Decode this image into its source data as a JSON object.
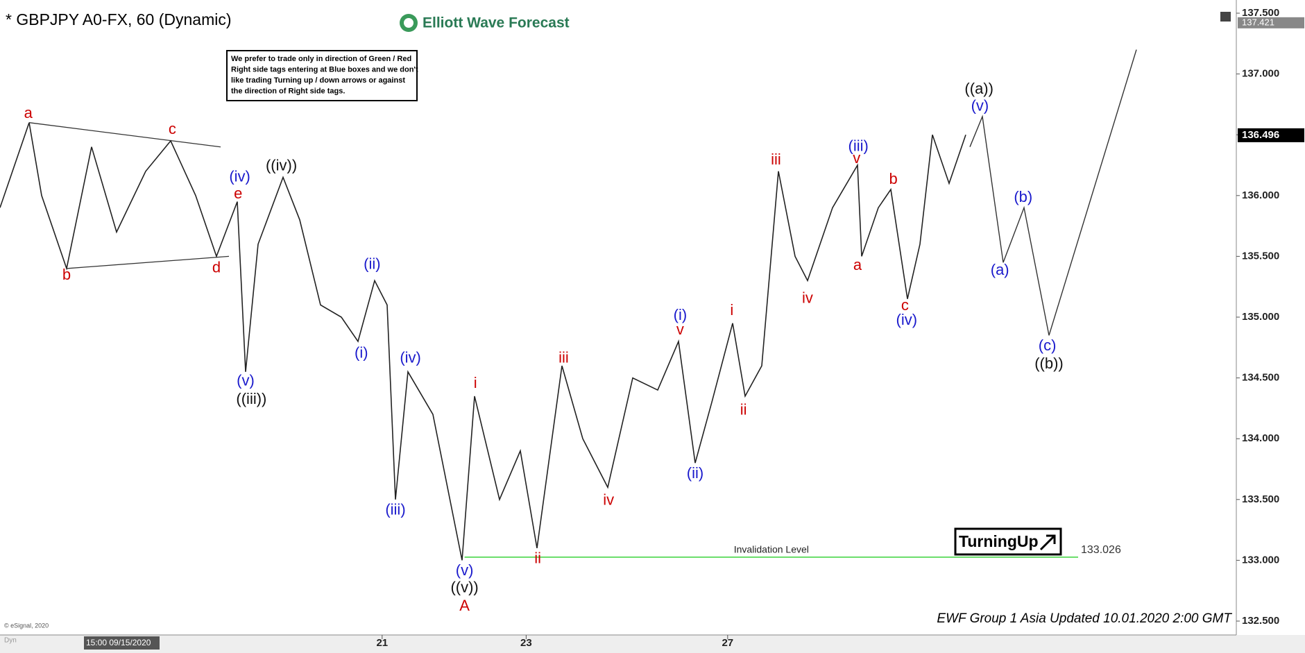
{
  "chart_data": {
    "type": "line",
    "title": "* GBPJPY A0-FX, 60 (Dynamic)",
    "brand": "Elliott Wave Forecast",
    "note": [
      "We prefer to trade only in direction of Green / Red",
      "Right side tags entering at Blue boxes and we don't",
      "like trading Turning up / down arrows or against",
      "the direction of Right side tags."
    ],
    "signal": "TurningUp",
    "footer": "EWF Group 1 Asia Updated 10.01.2020 2:00 GMT",
    "copyright": "© eSignal, 2020",
    "corner_label": "Dyn",
    "cursor_label": "15:00 09/15/2020",
    "last_price": {
      "value": 136.496,
      "label": "136.496"
    },
    "top_price": {
      "value": 137.421,
      "label": "137.421"
    },
    "xlim": [
      0,
      297
    ],
    "ylim": [
      132.5,
      137.5
    ],
    "xticks": [
      {
        "value": 91.8,
        "label": "21"
      },
      {
        "value": 126.4,
        "label": "23"
      },
      {
        "value": 174.8,
        "label": "27"
      }
    ],
    "yticks": [
      {
        "value": 132.5,
        "label": "132.500"
      },
      {
        "value": 133,
        "label": "133.000"
      },
      {
        "value": 133.5,
        "label": "133.500"
      },
      {
        "value": 134,
        "label": "134.000"
      },
      {
        "value": 134.5,
        "label": "134.500"
      },
      {
        "value": 135,
        "label": "135.000"
      },
      {
        "value": 135.5,
        "label": "135.500"
      },
      {
        "value": 136,
        "label": "136.000"
      },
      {
        "value": 136.5,
        "label": "136.500"
      },
      {
        "value": 137,
        "label": "137.000"
      },
      {
        "value": 137.5,
        "label": "137.500"
      }
    ],
    "series": [
      {
        "name": "GBPJPY",
        "color": "#222222",
        "x": [
          0,
          3,
          7,
          10,
          16,
          22,
          28,
          35,
          41,
          47,
          52,
          57,
          59,
          62,
          68,
          72,
          77,
          82,
          86,
          90,
          93,
          95,
          98,
          104,
          111,
          114,
          120,
          125,
          129,
          135,
          140,
          146,
          152,
          158,
          163,
          167,
          171,
          176,
          179,
          183,
          187,
          191,
          194,
          200,
          206,
          207,
          211,
          214,
          218,
          221,
          224,
          228,
          232
        ],
        "values": [
          135.9,
          136.2,
          136.6,
          136.0,
          135.4,
          136.4,
          135.7,
          136.2,
          136.45,
          136.0,
          135.5,
          135.95,
          134.55,
          135.6,
          136.15,
          135.8,
          135.1,
          135.0,
          134.8,
          135.3,
          135.1,
          133.5,
          134.55,
          134.2,
          133.0,
          134.35,
          133.5,
          133.9,
          133.1,
          134.6,
          134.0,
          133.6,
          134.5,
          134.4,
          134.8,
          133.8,
          134.3,
          134.95,
          134.35,
          134.6,
          136.2,
          135.5,
          135.3,
          135.9,
          136.25,
          135.5,
          135.9,
          136.05,
          135.15,
          135.6,
          136.5,
          136.1,
          136.5
        ]
      },
      {
        "name": "Projection",
        "color": "#333333",
        "x": [
          233,
          236,
          241,
          246,
          252,
          273
        ],
        "values": [
          136.4,
          136.65,
          135.45,
          135.9,
          134.85,
          137.2
        ]
      }
    ],
    "trendlines": [
      {
        "x": [
          7,
          53
        ],
        "values": [
          136.6,
          136.4
        ]
      },
      {
        "x": [
          16,
          55
        ],
        "values": [
          135.4,
          135.5
        ]
      }
    ],
    "invalidation": {
      "label": "Invalidation Level",
      "value": 133.026,
      "value_label": "133.026",
      "x": [
        111.6,
        259
      ],
      "color": "#66dd66"
    },
    "annotations": [
      {
        "text": "a",
        "x": 6.8,
        "y": 136.67,
        "color": "#cc0000"
      },
      {
        "text": "b",
        "x": 16,
        "y": 135.34,
        "color": "#cc0000"
      },
      {
        "text": "c",
        "x": 41.4,
        "y": 136.54,
        "color": "#cc0000"
      },
      {
        "text": "d",
        "x": 52,
        "y": 135.4,
        "color": "#cc0000"
      },
      {
        "text": "e",
        "x": 57.2,
        "y": 136.01,
        "color": "#cc0000"
      },
      {
        "text": "(iv)",
        "x": 57.6,
        "y": 136.15,
        "color": "#1a1acc"
      },
      {
        "text": "(v)",
        "x": 59,
        "y": 134.47,
        "color": "#1a1acc"
      },
      {
        "text": "((iii))",
        "x": 60.4,
        "y": 134.32,
        "color": "#111111"
      },
      {
        "text": "((iv))",
        "x": 67.6,
        "y": 136.24,
        "color": "#111111"
      },
      {
        "text": "(ii)",
        "x": 89.4,
        "y": 135.43,
        "color": "#1a1acc"
      },
      {
        "text": "(i)",
        "x": 86.8,
        "y": 134.7,
        "color": "#1a1acc"
      },
      {
        "text": "(iv)",
        "x": 98.6,
        "y": 134.66,
        "color": "#1a1acc"
      },
      {
        "text": "(iii)",
        "x": 95,
        "y": 133.41,
        "color": "#1a1acc"
      },
      {
        "text": "(v)",
        "x": 111.6,
        "y": 132.91,
        "color": "#1a1acc"
      },
      {
        "text": "((v))",
        "x": 111.6,
        "y": 132.77,
        "color": "#111111"
      },
      {
        "text": "A",
        "x": 111.6,
        "y": 132.62,
        "color": "#cc0000"
      },
      {
        "text": "i",
        "x": 114.2,
        "y": 134.45,
        "color": "#cc0000"
      },
      {
        "text": "ii",
        "x": 129.2,
        "y": 133.01,
        "color": "#cc0000"
      },
      {
        "text": "iii",
        "x": 135.4,
        "y": 134.66,
        "color": "#cc0000"
      },
      {
        "text": "iv",
        "x": 146.2,
        "y": 133.49,
        "color": "#cc0000"
      },
      {
        "text": "(i)",
        "x": 163.4,
        "y": 135.01,
        "color": "#1a1acc"
      },
      {
        "text": "v",
        "x": 163.4,
        "y": 134.89,
        "color": "#cc0000"
      },
      {
        "text": "(ii)",
        "x": 167,
        "y": 133.71,
        "color": "#1a1acc"
      },
      {
        "text": "i",
        "x": 175.8,
        "y": 135.05,
        "color": "#cc0000"
      },
      {
        "text": "ii",
        "x": 178.6,
        "y": 134.23,
        "color": "#cc0000"
      },
      {
        "text": "iii",
        "x": 186.4,
        "y": 136.29,
        "color": "#cc0000"
      },
      {
        "text": "iv",
        "x": 194,
        "y": 135.15,
        "color": "#cc0000"
      },
      {
        "text": "(iii)",
        "x": 206.2,
        "y": 136.4,
        "color": "#1a1acc"
      },
      {
        "text": "v",
        "x": 205.8,
        "y": 136.3,
        "color": "#cc0000"
      },
      {
        "text": "a",
        "x": 206,
        "y": 135.42,
        "color": "#cc0000"
      },
      {
        "text": "b",
        "x": 214.6,
        "y": 136.13,
        "color": "#cc0000"
      },
      {
        "text": "c",
        "x": 217.4,
        "y": 135.09,
        "color": "#cc0000"
      },
      {
        "text": "(iv)",
        "x": 217.8,
        "y": 134.97,
        "color": "#1a1acc"
      },
      {
        "text": "((a))",
        "x": 235.2,
        "y": 136.87,
        "color": "#111111"
      },
      {
        "text": "(v)",
        "x": 235.4,
        "y": 136.73,
        "color": "#1a1acc"
      },
      {
        "text": "(a)",
        "x": 240.2,
        "y": 135.38,
        "color": "#1a1acc"
      },
      {
        "text": "(b)",
        "x": 245.8,
        "y": 135.98,
        "color": "#1a1acc"
      },
      {
        "text": "(c)",
        "x": 251.6,
        "y": 134.76,
        "color": "#1a1acc"
      },
      {
        "text": "((b))",
        "x": 252,
        "y": 134.61,
        "color": "#111111"
      }
    ]
  }
}
